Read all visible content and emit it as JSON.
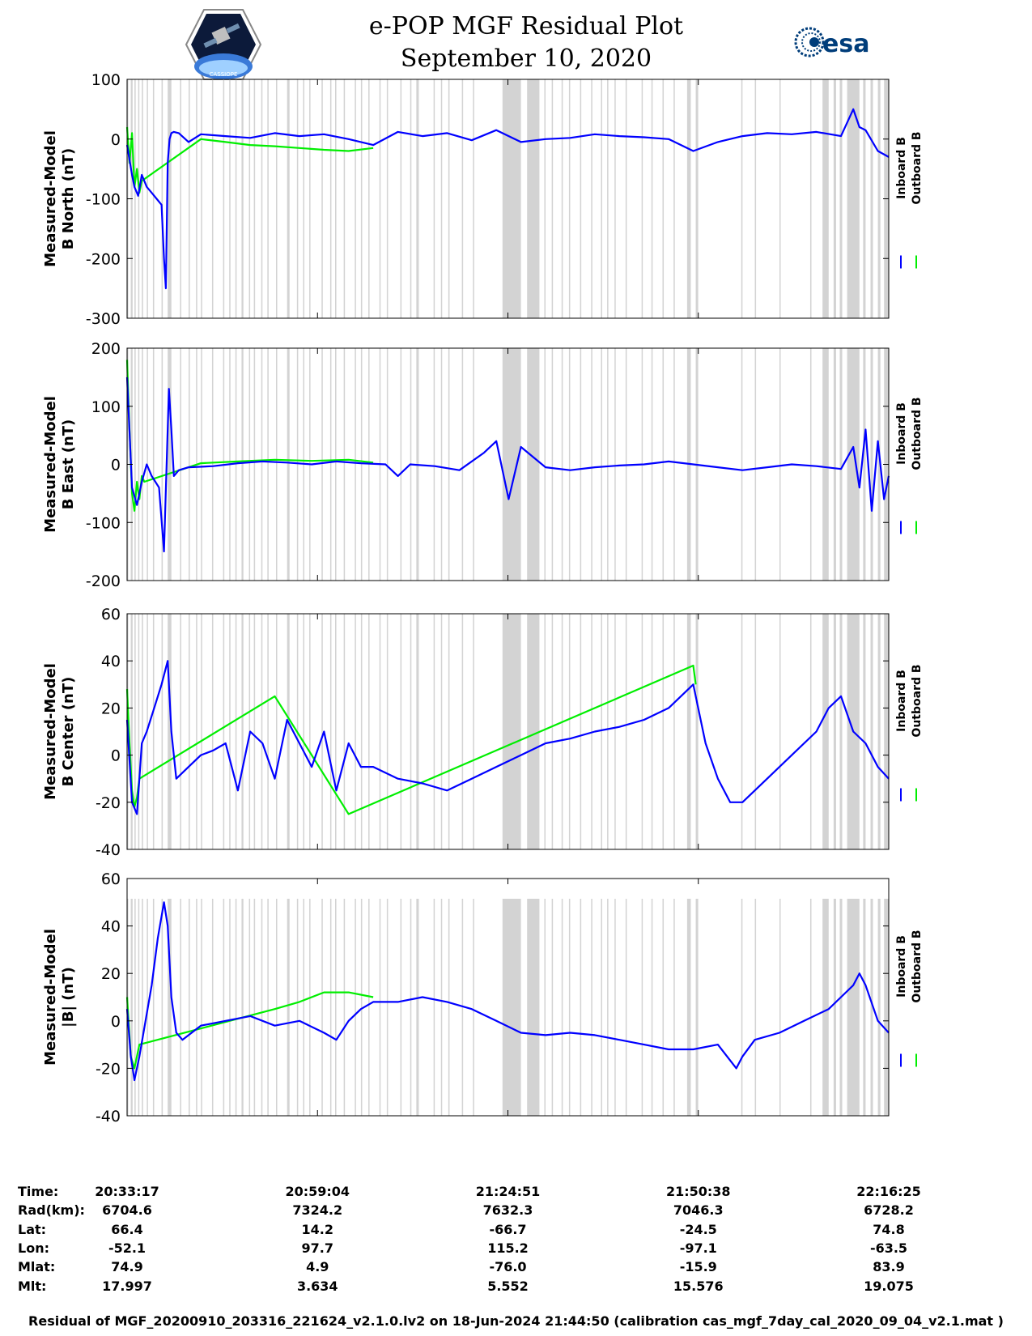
{
  "header": {
    "title": "e-POP MGF Residual Plot",
    "date": "September 10, 2020",
    "left_logo": "cassiope-mission-patch",
    "left_logo_text": "CASSIOPE",
    "right_logo": "esa-logo",
    "right_logo_text": "esa"
  },
  "colors": {
    "inboard": "#0000ff",
    "outboard": "#00ee00",
    "gap_shading": "#d3d3d3"
  },
  "legend": {
    "inboard_label": "Inboard B",
    "outboard_label": "Outboard B"
  },
  "chart_data": [
    {
      "type": "line",
      "ylabel": [
        "Measured-Model",
        "B North (nT)"
      ],
      "ylim": [
        -300,
        100
      ],
      "yticks": [
        100,
        0,
        -100,
        -200,
        -300
      ],
      "xlim": [
        0,
        6188
      ],
      "series": [
        {
          "name": "Inboard B",
          "color": "#0000ff",
          "x": [
            0,
            40,
            60,
            90,
            120,
            160,
            200,
            240,
            280,
            300,
            315,
            330,
            345,
            360,
            380,
            420,
            500,
            600,
            800,
            1000,
            1200,
            1400,
            1600,
            1800,
            2000,
            2200,
            2400,
            2600,
            2800,
            3000,
            3200,
            3400,
            3600,
            3800,
            4000,
            4200,
            4400,
            4500,
            4600,
            4800,
            5000,
            5200,
            5400,
            5600,
            5800,
            5900,
            5950,
            6000,
            6100,
            6188
          ],
          "y": [
            -10,
            -60,
            -80,
            -95,
            -60,
            -80,
            -90,
            -100,
            -110,
            -200,
            -250,
            -40,
            0,
            10,
            12,
            10,
            -5,
            8,
            5,
            2,
            10,
            5,
            8,
            0,
            -10,
            12,
            5,
            10,
            -2,
            15,
            -5,
            0,
            2,
            8,
            5,
            3,
            0,
            -10,
            -20,
            -5,
            5,
            10,
            8,
            12,
            5,
            50,
            20,
            15,
            -20,
            -30
          ]
        },
        {
          "name": "Outboard B",
          "color": "#00ee00",
          "x": [
            0,
            20,
            40,
            60,
            80,
            100,
            120,
            600,
            800,
            1000,
            1200,
            1400,
            1600,
            1800,
            2000
          ],
          "y": [
            20,
            -40,
            10,
            -80,
            -50,
            -90,
            -70,
            0,
            -5,
            -10,
            -12,
            -15,
            -18,
            -20,
            -15
          ]
        }
      ]
    },
    {
      "type": "line",
      "ylabel": [
        "Measured-Model",
        "B East (nT)"
      ],
      "ylim": [
        -200,
        200
      ],
      "yticks": [
        200,
        100,
        0,
        -100,
        -200
      ],
      "xlim": [
        0,
        6188
      ],
      "series": [
        {
          "name": "Inboard B",
          "color": "#0000ff",
          "x": [
            0,
            40,
            80,
            120,
            160,
            200,
            260,
            300,
            340,
            360,
            380,
            420,
            500,
            700,
            900,
            1100,
            1300,
            1500,
            1700,
            1900,
            2100,
            2200,
            2300,
            2500,
            2700,
            2900,
            3000,
            3100,
            3200,
            3400,
            3600,
            3800,
            4000,
            4200,
            4400,
            4600,
            4800,
            5000,
            5200,
            5400,
            5600,
            5800,
            5900,
            5950,
            6000,
            6050,
            6100,
            6150,
            6188
          ],
          "y": [
            150,
            -40,
            -70,
            -30,
            0,
            -20,
            -40,
            -150,
            130,
            60,
            -20,
            -10,
            -5,
            -3,
            2,
            5,
            3,
            0,
            5,
            2,
            0,
            -20,
            0,
            -3,
            -10,
            20,
            40,
            -60,
            30,
            -5,
            -10,
            -5,
            -2,
            0,
            5,
            0,
            -5,
            -10,
            -5,
            0,
            -3,
            -8,
            30,
            -40,
            60,
            -80,
            40,
            -60,
            -20
          ]
        },
        {
          "name": "Outboard B",
          "color": "#00ee00",
          "x": [
            0,
            20,
            40,
            60,
            80,
            100,
            120,
            140,
            600,
            900,
            1200,
            1500,
            1800,
            2000
          ],
          "y": [
            180,
            60,
            -50,
            -80,
            -30,
            -60,
            -20,
            -30,
            2,
            5,
            8,
            6,
            8,
            3
          ]
        }
      ]
    },
    {
      "type": "line",
      "ylabel": [
        "Measured-Model",
        "B Center (nT)"
      ],
      "ylim": [
        -40,
        60
      ],
      "yticks": [
        60,
        40,
        20,
        0,
        -20,
        -40
      ],
      "xlim": [
        0,
        6188
      ],
      "series": [
        {
          "name": "Inboard B",
          "color": "#0000ff",
          "x": [
            0,
            40,
            80,
            120,
            160,
            220,
            280,
            330,
            360,
            400,
            500,
            600,
            700,
            800,
            900,
            1000,
            1100,
            1200,
            1300,
            1400,
            1500,
            1600,
            1700,
            1800,
            1900,
            2000,
            2200,
            2400,
            2600,
            2800,
            3000,
            3200,
            3400,
            3600,
            3800,
            4000,
            4200,
            4400,
            4600,
            4700,
            4800,
            4900,
            5000,
            5200,
            5400,
            5600,
            5700,
            5800,
            5900,
            6000,
            6100,
            6188
          ],
          "y": [
            15,
            -20,
            -25,
            5,
            10,
            20,
            30,
            40,
            10,
            -10,
            -5,
            0,
            2,
            5,
            -15,
            10,
            5,
            -10,
            15,
            5,
            -5,
            10,
            -15,
            5,
            -5,
            -5,
            -10,
            -12,
            -15,
            -10,
            -5,
            0,
            5,
            7,
            10,
            12,
            15,
            20,
            30,
            5,
            -10,
            -20,
            -20,
            -10,
            0,
            10,
            20,
            25,
            10,
            5,
            -5,
            -10
          ]
        },
        {
          "name": "Outboard B",
          "color": "#00ee00",
          "x": [
            0,
            20,
            40,
            60,
            80,
            100,
            1200,
            1800,
            4600,
            4620
          ],
          "y": [
            28,
            5,
            -15,
            -22,
            -18,
            -10,
            25,
            -25,
            38,
            30
          ]
        }
      ]
    },
    {
      "type": "line",
      "ylabel": [
        "Measured-Model",
        "|B| (nT)"
      ],
      "ylim": [
        -40,
        60
      ],
      "yticks": [
        60,
        40,
        20,
        0,
        -20,
        -40
      ],
      "xlim": [
        0,
        6188
      ],
      "series": [
        {
          "name": "Inboard B",
          "color": "#0000ff",
          "x": [
            0,
            30,
            60,
            100,
            150,
            200,
            250,
            300,
            330,
            360,
            400,
            450,
            600,
            800,
            1000,
            1200,
            1400,
            1600,
            1700,
            1800,
            1900,
            2000,
            2200,
            2400,
            2600,
            2800,
            3000,
            3200,
            3400,
            3600,
            3800,
            4000,
            4200,
            4400,
            4600,
            4800,
            4950,
            5000,
            5100,
            5300,
            5500,
            5700,
            5800,
            5900,
            5950,
            6000,
            6100,
            6188
          ],
          "y": [
            5,
            -15,
            -25,
            -15,
            0,
            15,
            35,
            50,
            40,
            10,
            -5,
            -8,
            -2,
            0,
            2,
            -2,
            0,
            -5,
            -8,
            0,
            5,
            8,
            8,
            10,
            8,
            5,
            0,
            -5,
            -6,
            -5,
            -6,
            -8,
            -10,
            -12,
            -12,
            -10,
            -20,
            -15,
            -8,
            -5,
            0,
            5,
            10,
            15,
            20,
            15,
            0,
            -5
          ]
        },
        {
          "name": "Outboard B",
          "color": "#00ee00",
          "x": [
            0,
            30,
            60,
            100,
            1200,
            1400,
            1600,
            1800,
            2000
          ],
          "y": [
            10,
            -15,
            -20,
            -10,
            5,
            8,
            12,
            12,
            10
          ]
        }
      ]
    }
  ],
  "gap_intervals": [
    [
      0,
      10
    ],
    [
      30,
      45
    ],
    [
      60,
      70
    ],
    [
      90,
      100
    ],
    [
      120,
      130
    ],
    [
      160,
      170
    ],
    [
      210,
      220
    ],
    [
      280,
      290
    ],
    [
      330,
      360
    ],
    [
      430,
      440
    ],
    [
      500,
      510
    ],
    [
      560,
      570
    ],
    [
      600,
      610
    ],
    [
      690,
      700
    ],
    [
      780,
      790
    ],
    [
      830,
      840
    ],
    [
      880,
      890
    ],
    [
      930,
      945
    ],
    [
      990,
      1000
    ],
    [
      1030,
      1040
    ],
    [
      1090,
      1100
    ],
    [
      1140,
      1150
    ],
    [
      1210,
      1220
    ],
    [
      1300,
      1320
    ],
    [
      1380,
      1390
    ],
    [
      1430,
      1440
    ],
    [
      1480,
      1490
    ],
    [
      1580,
      1590
    ],
    [
      1650,
      1660
    ],
    [
      1690,
      1700
    ],
    [
      1760,
      1770
    ],
    [
      1850,
      1860
    ],
    [
      1900,
      1910
    ],
    [
      1960,
      1970
    ],
    [
      2050,
      2060
    ],
    [
      2110,
      2120
    ],
    [
      2220,
      2230
    ],
    [
      2300,
      2310
    ],
    [
      2350,
      2370
    ],
    [
      2490,
      2500
    ],
    [
      2550,
      2560
    ],
    [
      2610,
      2620
    ],
    [
      2720,
      2730
    ],
    [
      2810,
      2820
    ],
    [
      3050,
      3200
    ],
    [
      3250,
      3350
    ],
    [
      3390,
      3400
    ],
    [
      3450,
      3460
    ],
    [
      3530,
      3540
    ],
    [
      3590,
      3600
    ],
    [
      3680,
      3690
    ],
    [
      3770,
      3780
    ],
    [
      3850,
      3860
    ],
    [
      3900,
      3910
    ],
    [
      3960,
      3970
    ],
    [
      4050,
      4060
    ],
    [
      4180,
      4190
    ],
    [
      4260,
      4270
    ],
    [
      4350,
      4360
    ],
    [
      4440,
      4450
    ],
    [
      4550,
      4580
    ],
    [
      4620,
      4640
    ],
    [
      4990,
      5000
    ],
    [
      5100,
      5110
    ],
    [
      5300,
      5310
    ],
    [
      5550,
      5560
    ],
    [
      5650,
      5700
    ],
    [
      5740,
      5760
    ],
    [
      5790,
      5810
    ],
    [
      5850,
      5950
    ],
    [
      5980,
      6000
    ],
    [
      6040,
      6060
    ],
    [
      6100,
      6120
    ],
    [
      6150,
      6188
    ]
  ],
  "time_axis": {
    "labels": [
      "Time:",
      "Rad(km):",
      "Lat:",
      "Lon:",
      "Mlat:",
      "Mlt:"
    ],
    "ticks": [
      {
        "x": 0,
        "values": [
          "20:33:17",
          "6704.6",
          "66.4",
          "-52.1",
          "74.9",
          "17.997"
        ]
      },
      {
        "x": 1547,
        "values": [
          "20:59:04",
          "7324.2",
          "14.2",
          "97.7",
          "4.9",
          "3.634"
        ]
      },
      {
        "x": 3094,
        "values": [
          "21:24:51",
          "7632.3",
          "-66.7",
          "115.2",
          "-76.0",
          "5.552"
        ]
      },
      {
        "x": 4641,
        "values": [
          "21:50:38",
          "7046.3",
          "-24.5",
          "-97.1",
          "-15.9",
          "15.576"
        ]
      },
      {
        "x": 6188,
        "values": [
          "22:16:25",
          "6728.2",
          "74.8",
          "-63.5",
          "83.9",
          "19.075"
        ]
      }
    ]
  },
  "footer": "Residual of MGF_20200910_203316_221624_v2.1.0.lv2 on 18-Jun-2024 21:44:50 (calibration cas_mgf_7day_cal_2020_09_04_v2.1.mat )"
}
